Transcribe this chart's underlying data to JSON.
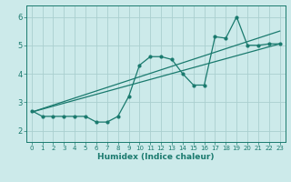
{
  "xlabel": "Humidex (Indice chaleur)",
  "background_color": "#cceaea",
  "grid_color": "#aacfcf",
  "line_color": "#1a7a6e",
  "xlim": [
    -0.5,
    23.5
  ],
  "ylim": [
    1.6,
    6.4
  ],
  "xticks": [
    0,
    1,
    2,
    3,
    4,
    5,
    6,
    7,
    8,
    9,
    10,
    11,
    12,
    13,
    14,
    15,
    16,
    17,
    18,
    19,
    20,
    21,
    22,
    23
  ],
  "yticks": [
    2,
    3,
    4,
    5,
    6
  ],
  "data_line": {
    "x": [
      0,
      1,
      2,
      3,
      4,
      5,
      6,
      7,
      8,
      9,
      10,
      11,
      12,
      13,
      14,
      15,
      16,
      17,
      18,
      19,
      20,
      21,
      22,
      23
    ],
    "y": [
      2.7,
      2.5,
      2.5,
      2.5,
      2.5,
      2.5,
      2.3,
      2.3,
      2.5,
      3.2,
      4.3,
      4.6,
      4.6,
      4.5,
      4.0,
      3.6,
      3.6,
      5.3,
      5.25,
      6.0,
      5.0,
      5.0,
      5.05,
      5.05
    ]
  },
  "trend_line1": {
    "x": [
      0,
      23
    ],
    "y": [
      2.65,
      5.05
    ]
  },
  "trend_line2": {
    "x": [
      0,
      23
    ],
    "y": [
      2.65,
      5.5
    ]
  }
}
